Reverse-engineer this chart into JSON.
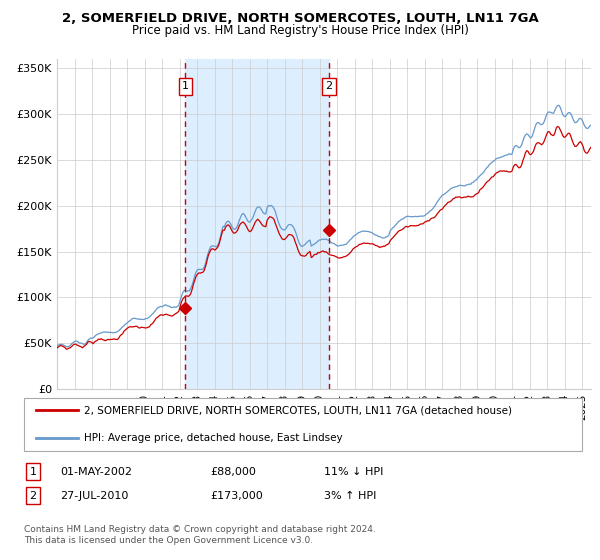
{
  "title": "2, SOMERFIELD DRIVE, NORTH SOMERCOTES, LOUTH, LN11 7GA",
  "subtitle": "Price paid vs. HM Land Registry's House Price Index (HPI)",
  "legend_label_red": "2, SOMERFIELD DRIVE, NORTH SOMERCOTES, LOUTH, LN11 7GA (detached house)",
  "legend_label_blue": "HPI: Average price, detached house, East Lindsey",
  "annotation1_label": "1",
  "annotation1_date": "01-MAY-2002",
  "annotation1_price": "£88,000",
  "annotation1_hpi": "11% ↓ HPI",
  "annotation2_label": "2",
  "annotation2_date": "27-JUL-2010",
  "annotation2_price": "£173,000",
  "annotation2_hpi": "3% ↑ HPI",
  "footer": "Contains HM Land Registry data © Crown copyright and database right 2024.\nThis data is licensed under the Open Government Licence v3.0.",
  "ylim": [
    0,
    360000
  ],
  "yticks": [
    0,
    50000,
    100000,
    150000,
    200000,
    250000,
    300000,
    350000
  ],
  "ytick_labels": [
    "£0",
    "£50K",
    "£100K",
    "£150K",
    "£200K",
    "£250K",
    "£300K",
    "£350K"
  ],
  "color_red": "#cc0000",
  "color_blue": "#6699cc",
  "color_shade": "#ddeeff",
  "color_grid": "#cccccc",
  "color_dashed": "#cc0000",
  "background_color": "#ffffff",
  "sale1_year": 2002.33,
  "sale1_price": 88000,
  "sale2_year": 2010.54,
  "sale2_price": 173000,
  "xlim_start": 1995,
  "xlim_end": 2025.5
}
